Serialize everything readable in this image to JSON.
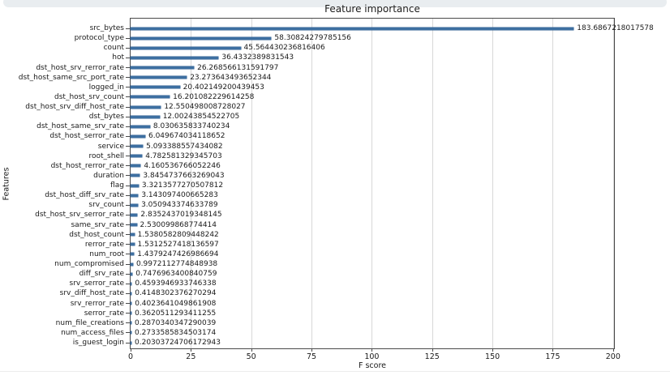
{
  "page": {
    "background": "#ffffff",
    "top_strip_color": "#e9edf0"
  },
  "chart_data": {
    "type": "bar",
    "orientation": "horizontal",
    "title": "Feature importance",
    "xlabel": "F score",
    "ylabel": "Features",
    "xlim": [
      0,
      200.4
    ],
    "x_ticks": [
      0,
      25,
      50,
      75,
      100,
      125,
      150,
      175,
      200
    ],
    "grid": true,
    "legend": "none",
    "bar_color": "#3d6fa1",
    "items": [
      {
        "label": "src_bytes",
        "value": 183.6867218017578,
        "value_label": "183.6867218017578"
      },
      {
        "label": "protocol_type",
        "value": 58.30824279785156,
        "value_label": "58.30824279785156"
      },
      {
        "label": "count",
        "value": 45.564430236816406,
        "value_label": "45.564430236816406"
      },
      {
        "label": "hot",
        "value": 36.4332389831543,
        "value_label": "36.4332389831543"
      },
      {
        "label": "dst_host_srv_rerror_rate",
        "value": 26.268566131591797,
        "value_label": "26.268566131591797"
      },
      {
        "label": "dst_host_same_src_port_rate",
        "value": 23.273643493652344,
        "value_label": "23.273643493652344"
      },
      {
        "label": "logged_in",
        "value": 20.402149200439453,
        "value_label": "20.402149200439453"
      },
      {
        "label": "dst_host_srv_count",
        "value": 16.201082229614258,
        "value_label": "16.201082229614258"
      },
      {
        "label": "dst_host_srv_diff_host_rate",
        "value": 12.550498008728027,
        "value_label": "12.550498008728027"
      },
      {
        "label": "dst_bytes",
        "value": 12.00243854522705,
        "value_label": "12.00243854522705"
      },
      {
        "label": "dst_host_same_srv_rate",
        "value": 8.030635833740234,
        "value_label": "8.030635833740234"
      },
      {
        "label": "dst_host_serror_rate",
        "value": 6.049674034118652,
        "value_label": "6.049674034118652"
      },
      {
        "label": "service",
        "value": 5.093388557434082,
        "value_label": "5.093388557434082"
      },
      {
        "label": "root_shell",
        "value": 4.782581329345703,
        "value_label": "4.782581329345703"
      },
      {
        "label": "dst_host_rerror_rate",
        "value": 4.160536766052246,
        "value_label": "4.160536766052246"
      },
      {
        "label": "duration",
        "value": 3.8454737663269043,
        "value_label": "3.8454737663269043"
      },
      {
        "label": "flag",
        "value": 3.3213577270507812,
        "value_label": "3.3213577270507812"
      },
      {
        "label": "dst_host_diff_srv_rate",
        "value": 3.143097400665283,
        "value_label": "3.143097400665283"
      },
      {
        "label": "srv_count",
        "value": 3.050943374633789,
        "value_label": "3.050943374633789"
      },
      {
        "label": "dst_host_srv_serror_rate",
        "value": 2.8352437019348145,
        "value_label": "2.8352437019348145"
      },
      {
        "label": "same_srv_rate",
        "value": 2.530099868774414,
        "value_label": "2.530099868774414"
      },
      {
        "label": "dst_host_count",
        "value": 1.5380582809448242,
        "value_label": "1.5380582809448242"
      },
      {
        "label": "rerror_rate",
        "value": 1.5312527418136597,
        "value_label": "1.5312527418136597"
      },
      {
        "label": "num_root",
        "value": 1.4379247426986694,
        "value_label": "1.4379247426986694"
      },
      {
        "label": "num_compromised",
        "value": 0.9972112774848938,
        "value_label": "0.9972112774848938"
      },
      {
        "label": "diff_srv_rate",
        "value": 0.7476963400840759,
        "value_label": "0.7476963400840759"
      },
      {
        "label": "srv_serror_rate",
        "value": 0.4593946933746338,
        "value_label": "0.4593946933746338"
      },
      {
        "label": "srv_diff_host_rate",
        "value": 0.4148302376270294,
        "value_label": "0.4148302376270294"
      },
      {
        "label": "srv_rerror_rate",
        "value": 0.4023641049861908,
        "value_label": "0.4023641049861908"
      },
      {
        "label": "serror_rate",
        "value": 0.3620511293411255,
        "value_label": "0.3620511293411255"
      },
      {
        "label": "num_file_creations",
        "value": 0.2870340347290039,
        "value_label": "0.2870340347290039"
      },
      {
        "label": "num_access_files",
        "value": 0.2733585834503174,
        "value_label": "0.2733585834503174"
      },
      {
        "label": "is_guest_login",
        "value": 0.20303724706172943,
        "value_label": "0.20303724706172943"
      }
    ]
  }
}
